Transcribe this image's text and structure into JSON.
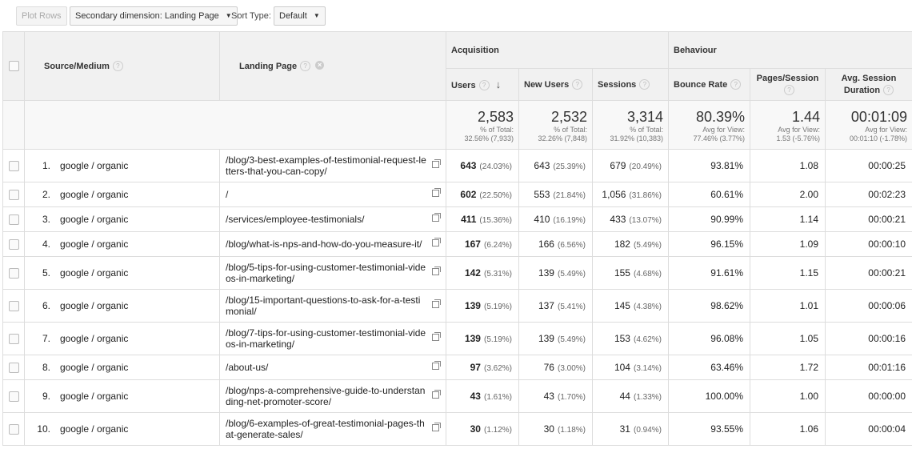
{
  "toolbar": {
    "plot_rows_label": "Plot Rows",
    "secondary_dimension_label": "Secondary dimension: Landing Page",
    "sort_type_label": "Sort Type:",
    "sort_type_value": "Default"
  },
  "header": {
    "source_medium": "Source/Medium",
    "landing_page": "Landing Page",
    "acquisition": "Acquisition",
    "behaviour": "Behaviour",
    "users": "Users",
    "new_users": "New Users",
    "sessions": "Sessions",
    "bounce_rate": "Bounce Rate",
    "pages_session": "Pages/Session",
    "avg_session_duration_1": "Avg. Session",
    "avg_session_duration_2": "Duration",
    "help_symbol": "?",
    "remove_symbol": "×",
    "sort_arrow": "↓"
  },
  "totals": {
    "users": {
      "value": "2,583",
      "l1": "% of Total:",
      "l2": "32.56% (7,933)"
    },
    "new_users": {
      "value": "2,532",
      "l1": "% of Total:",
      "l2": "32.26% (7,848)"
    },
    "sessions": {
      "value": "3,314",
      "l1": "% of Total:",
      "l2": "31.92% (10,383)"
    },
    "bounce_rate": {
      "value": "80.39%",
      "l1": "Avg for View:",
      "l2": "77.46% (3.77%)"
    },
    "pages_session": {
      "value": "1.44",
      "l1": "Avg for View:",
      "l2": "1.53 (-5.76%)"
    },
    "avg_duration": {
      "value": "00:01:09",
      "l1": "Avg for View:",
      "l2": "00:01:10 (-1.78%)"
    }
  },
  "rows": [
    {
      "idx": "1.",
      "source": "google / organic",
      "landing": "/blog/3-best-examples-of-testimonial-request-letters-that-you-can-copy/",
      "users": "643",
      "users_pct": "(24.03%)",
      "new_users": "643",
      "new_users_pct": "(25.39%)",
      "sessions": "679",
      "sessions_pct": "(20.49%)",
      "bounce": "93.81%",
      "pages": "1.08",
      "duration": "00:00:25"
    },
    {
      "idx": "2.",
      "source": "google / organic",
      "landing": "/",
      "users": "602",
      "users_pct": "(22.50%)",
      "new_users": "553",
      "new_users_pct": "(21.84%)",
      "sessions": "1,056",
      "sessions_pct": "(31.86%)",
      "bounce": "60.61%",
      "pages": "2.00",
      "duration": "00:02:23"
    },
    {
      "idx": "3.",
      "source": "google / organic",
      "landing": "/services/employee-testimonials/",
      "users": "411",
      "users_pct": "(15.36%)",
      "new_users": "410",
      "new_users_pct": "(16.19%)",
      "sessions": "433",
      "sessions_pct": "(13.07%)",
      "bounce": "90.99%",
      "pages": "1.14",
      "duration": "00:00:21"
    },
    {
      "idx": "4.",
      "source": "google / organic",
      "landing": "/blog/what-is-nps-and-how-do-you-measure-it/",
      "users": "167",
      "users_pct": "(6.24%)",
      "new_users": "166",
      "new_users_pct": "(6.56%)",
      "sessions": "182",
      "sessions_pct": "(5.49%)",
      "bounce": "96.15%",
      "pages": "1.09",
      "duration": "00:00:10"
    },
    {
      "idx": "5.",
      "source": "google / organic",
      "landing": "/blog/5-tips-for-using-customer-testimonial-videos-in-marketing/",
      "users": "142",
      "users_pct": "(5.31%)",
      "new_users": "139",
      "new_users_pct": "(5.49%)",
      "sessions": "155",
      "sessions_pct": "(4.68%)",
      "bounce": "91.61%",
      "pages": "1.15",
      "duration": "00:00:21"
    },
    {
      "idx": "6.",
      "source": "google / organic",
      "landing": "/blog/15-important-questions-to-ask-for-a-testimonial/",
      "users": "139",
      "users_pct": "(5.19%)",
      "new_users": "137",
      "new_users_pct": "(5.41%)",
      "sessions": "145",
      "sessions_pct": "(4.38%)",
      "bounce": "98.62%",
      "pages": "1.01",
      "duration": "00:00:06"
    },
    {
      "idx": "7.",
      "source": "google / organic",
      "landing": "/blog/7-tips-for-using-customer-testimonial-videos-in-marketing/",
      "users": "139",
      "users_pct": "(5.19%)",
      "new_users": "139",
      "new_users_pct": "(5.49%)",
      "sessions": "153",
      "sessions_pct": "(4.62%)",
      "bounce": "96.08%",
      "pages": "1.05",
      "duration": "00:00:16"
    },
    {
      "idx": "8.",
      "source": "google / organic",
      "landing": "/about-us/",
      "users": "97",
      "users_pct": "(3.62%)",
      "new_users": "76",
      "new_users_pct": "(3.00%)",
      "sessions": "104",
      "sessions_pct": "(3.14%)",
      "bounce": "63.46%",
      "pages": "1.72",
      "duration": "00:01:16"
    },
    {
      "idx": "9.",
      "source": "google / organic",
      "landing": "/blog/nps-a-comprehensive-guide-to-understanding-net-promoter-score/",
      "users": "43",
      "users_pct": "(1.61%)",
      "new_users": "43",
      "new_users_pct": "(1.70%)",
      "sessions": "44",
      "sessions_pct": "(1.33%)",
      "bounce": "100.00%",
      "pages": "1.00",
      "duration": "00:00:00"
    },
    {
      "idx": "10.",
      "source": "google / organic",
      "landing": "/blog/6-examples-of-great-testimonial-pages-that-generate-sales/",
      "users": "30",
      "users_pct": "(1.12%)",
      "new_users": "30",
      "new_users_pct": "(1.18%)",
      "sessions": "31",
      "sessions_pct": "(0.94%)",
      "bounce": "93.55%",
      "pages": "1.06",
      "duration": "00:00:04"
    }
  ]
}
